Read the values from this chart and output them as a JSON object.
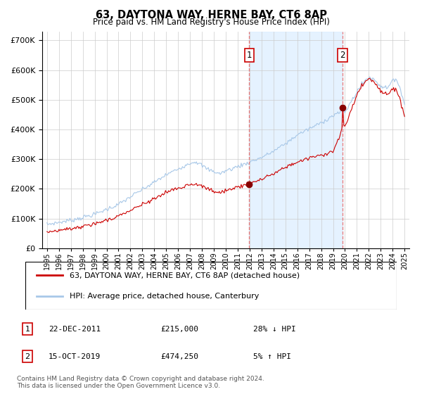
{
  "title": "63, DAYTONA WAY, HERNE BAY, CT6 8AP",
  "subtitle": "Price paid vs. HM Land Registry's House Price Index (HPI)",
  "hpi_color": "#a8c8e8",
  "price_color": "#cc0000",
  "dashed_color": "#e87878",
  "shading_color": "#ddeeff",
  "marker_color": "#880000",
  "background_color": "#ffffff",
  "grid_color": "#cccccc",
  "ylim": [
    0,
    730000
  ],
  "yticks": [
    0,
    100000,
    200000,
    300000,
    400000,
    500000,
    600000,
    700000
  ],
  "sale1_year": 2011.97,
  "sale1_price": 215000,
  "sale1_label": "1",
  "sale1_date": "22-DEC-2011",
  "sale1_hpi_pct": "28% ↓ HPI",
  "sale2_year": 2019.79,
  "sale2_price": 474250,
  "sale2_label": "2",
  "sale2_date": "15-OCT-2019",
  "sale2_hpi_pct": "5% ↑ HPI",
  "legend1": "63, DAYTONA WAY, HERNE BAY, CT6 8AP (detached house)",
  "legend2": "HPI: Average price, detached house, Canterbury",
  "footnote": "Contains HM Land Registry data © Crown copyright and database right 2024.\nThis data is licensed under the Open Government Licence v3.0.",
  "xstart": 1995,
  "xend": 2025
}
